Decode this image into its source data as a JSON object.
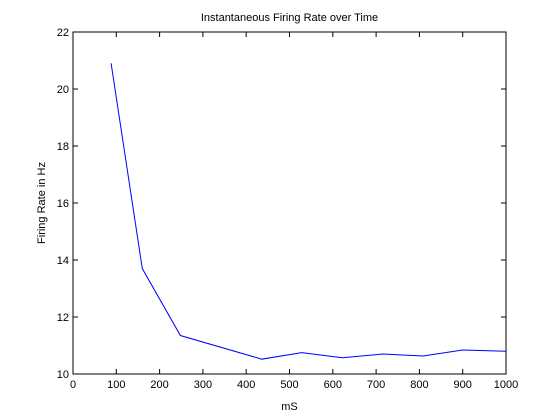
{
  "chart_data": {
    "type": "line",
    "title": "Instantaneous Firing Rate over Time",
    "xlabel": "mS",
    "ylabel": "Firing Rate in Hz",
    "xlim": [
      0,
      1000
    ],
    "ylim": [
      10,
      22
    ],
    "xticks": [
      0,
      100,
      200,
      300,
      400,
      500,
      600,
      700,
      800,
      900,
      1000
    ],
    "yticks": [
      10,
      12,
      14,
      16,
      18,
      20,
      22
    ],
    "grid": false,
    "series": [
      {
        "color": "#0000ff",
        "x": [
          88,
          160,
          248,
          436,
          528,
          622,
          715,
          808,
          900,
          1000
        ],
        "y": [
          20.9,
          13.7,
          11.35,
          10.52,
          10.75,
          10.57,
          10.7,
          10.63,
          10.84,
          10.8
        ]
      }
    ]
  }
}
